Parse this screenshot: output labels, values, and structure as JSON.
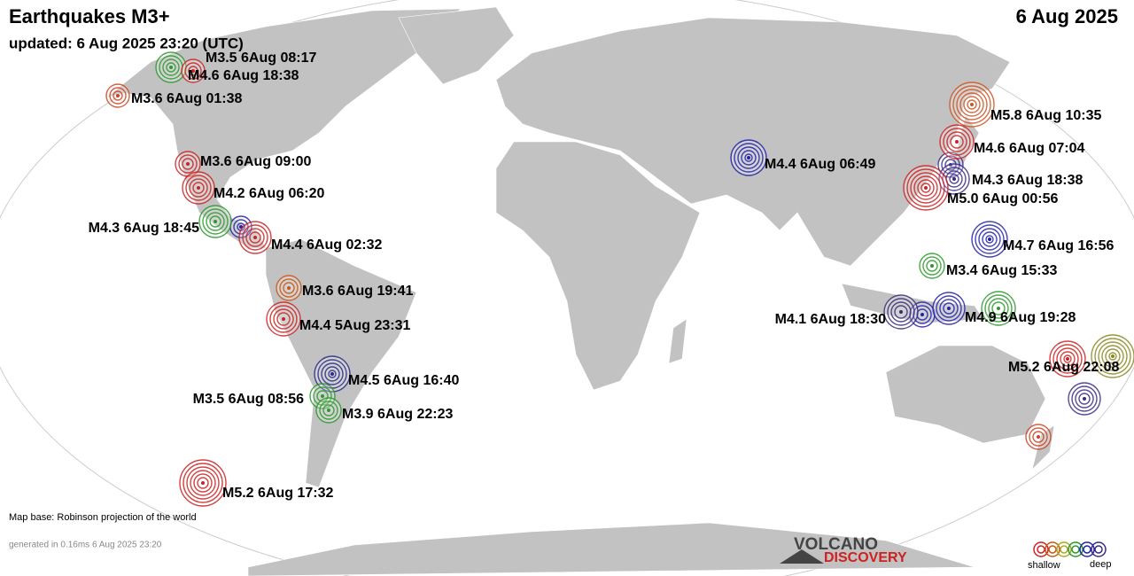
{
  "header": {
    "title": "Earthquakes M3+",
    "date": "6 Aug 2025",
    "updated": "updated:  6 Aug 2025 23:20 (UTC)"
  },
  "quakes": [
    {
      "label": "M3.5  6Aug 08:17",
      "color": "#2a9a2a"
    },
    {
      "label": "M4.6  6Aug 18:38",
      "color": "#cc2222"
    },
    {
      "label": "M3.6  6Aug 01:38",
      "color": "#cc4422"
    },
    {
      "label": "M3.6  6Aug 09:00",
      "color": "#cc2222"
    },
    {
      "label": "M4.2  6Aug 06:20",
      "color": "#cc2222"
    },
    {
      "label": "M4.3  6Aug 18:45",
      "color": "#2a9a2a"
    },
    {
      "label": "M4.4  6Aug 02:32",
      "color": "#cc2222"
    },
    {
      "label": "M3.6  6Aug 19:41",
      "color": "#cc5511"
    },
    {
      "label": "M4.4  5Aug 23:31",
      "color": "#cc2222"
    },
    {
      "label": "M4.5  6Aug 16:40",
      "color": "#2a2a88"
    },
    {
      "label": "M3.5  6Aug 08:56",
      "color": "#2a9a2a"
    },
    {
      "label": "M3.9  6Aug 22:23",
      "color": "#2a9a2a"
    },
    {
      "label": "M5.2  6Aug 17:32",
      "color": "#cc2222"
    },
    {
      "label": "M4.4  6Aug 06:49",
      "color": "#2222aa"
    },
    {
      "label": "M5.8  6Aug 10:35",
      "color": "#cc5522"
    },
    {
      "label": "M4.6  6Aug 07:04",
      "color": "#cc2222"
    },
    {
      "label": "M4.3  6Aug 18:38",
      "color": "#3a2a88"
    },
    {
      "label": "M5.0  6Aug 00:56",
      "color": "#cc2222"
    },
    {
      "label": "M4.7  6Aug 16:56",
      "color": "#2222aa"
    },
    {
      "label": "M3.4  6Aug 15:33",
      "color": "#2a9a2a"
    },
    {
      "label": "M4.1  6Aug 18:30",
      "color": "#3a2a77"
    },
    {
      "label": "M4.9  6Aug 19:28",
      "color": "#2a9a2a"
    },
    {
      "label": "M5.2  6Aug 22:08",
      "color": "#cc2222"
    }
  ],
  "footer": {
    "map_base": "Map base: Robinson projection of the world",
    "generated": "generated in 0.16ms  6 Aug 2025 23:20",
    "logo_top": "VOLCANO",
    "logo_bottom": "DISCOVERY",
    "legend_shallow": "shallow",
    "legend_deep": "deep"
  }
}
